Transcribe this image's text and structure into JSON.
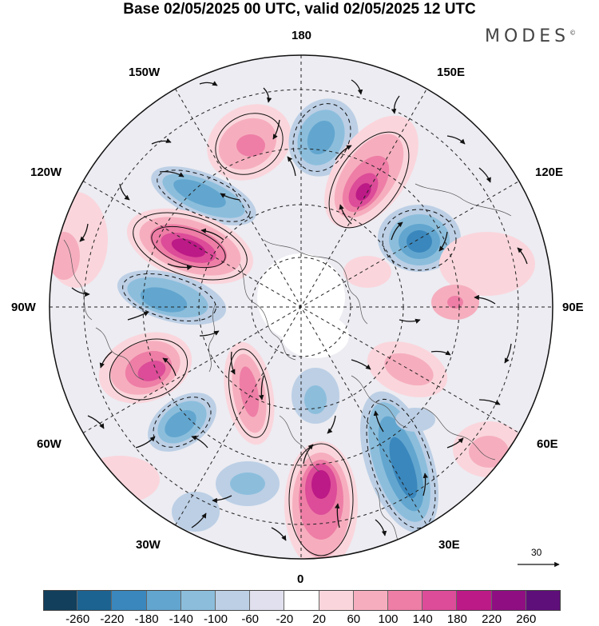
{
  "title": "Base 02/05/2025 00 UTC, valid 02/05/2025 12 UTC",
  "brand": "MODES",
  "brand_mark": "©",
  "longitude_labels": {
    "lon_180": "180",
    "lon_150w": "150W",
    "lon_150e": "150E",
    "lon_120w": "120W",
    "lon_120e": "120E",
    "lon_90w": "90W",
    "lon_90e": "90E",
    "lon_60w": "60W",
    "lon_60e": "60E",
    "lon_30w": "30W",
    "lon_30e": "30E",
    "lon_0": "0"
  },
  "reference_vector": "30",
  "colorbar": {
    "ticks": [
      "-260",
      "-220",
      "-180",
      "-140",
      "-100",
      "-60",
      "-20",
      "20",
      "60",
      "100",
      "140",
      "180",
      "220",
      "260"
    ],
    "colors": [
      "#123f5c",
      "#1c6391",
      "#3a87bd",
      "#62a6cf",
      "#8cbedc",
      "#bccfe5",
      "#e0e0ee",
      "#ffffff",
      "#fad6dc",
      "#f6aebe",
      "#ee7ea6",
      "#dc4c98",
      "#bc1a86",
      "#8f0f82",
      "#5f0f7a"
    ]
  },
  "anomaly_colors": {
    "pos1": "#fad6dc",
    "pos2": "#f6aebe",
    "pos3": "#ee7ea6",
    "pos4": "#dc4c98",
    "pos5": "#bc1a86",
    "pos6": "#8f0f82",
    "neg1": "#e0e0ee",
    "neg2": "#bccfe5",
    "neg3": "#8cbedc",
    "neg4": "#62a6cf",
    "neg5": "#3a87bd"
  }
}
